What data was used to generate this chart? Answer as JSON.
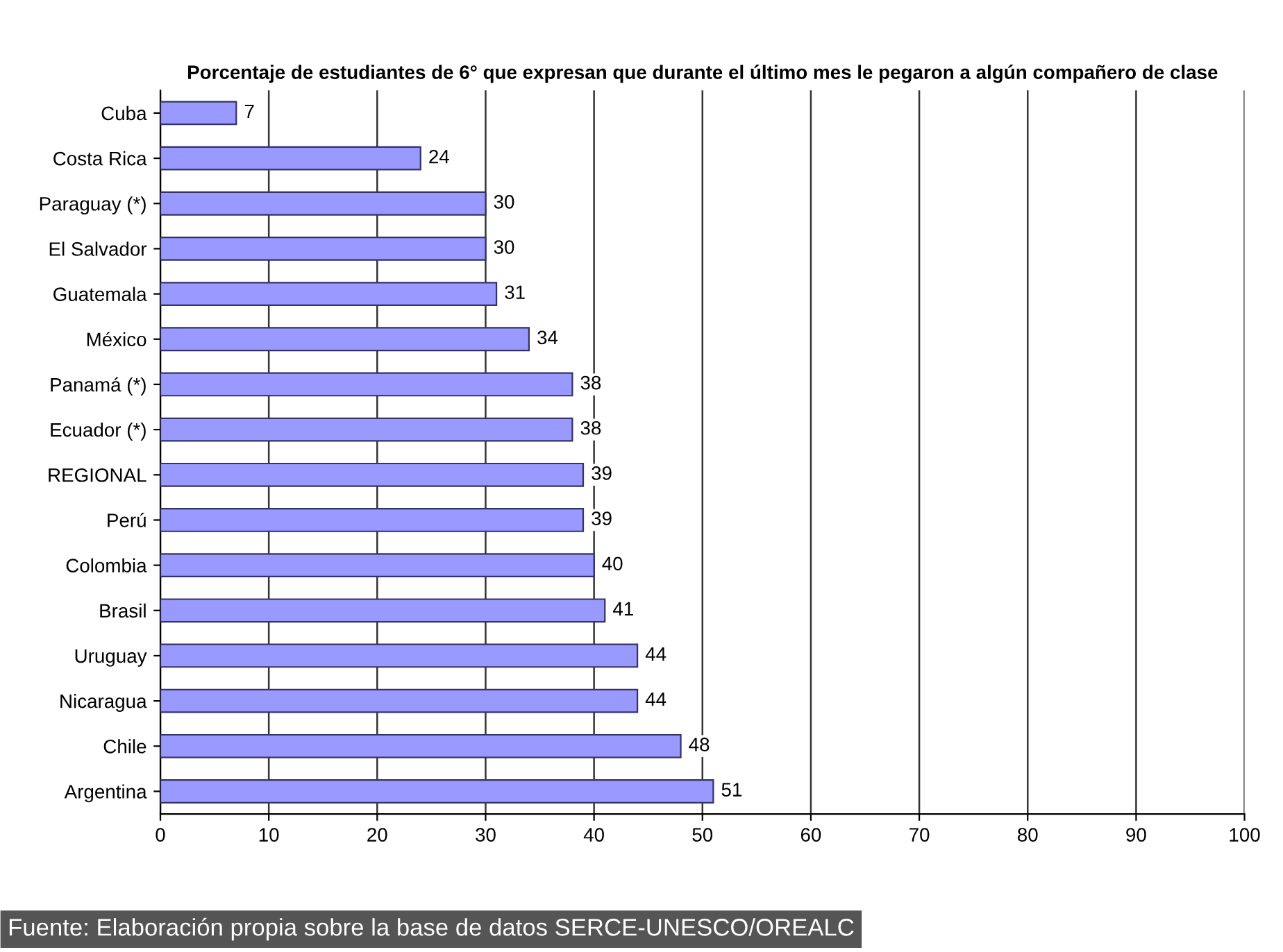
{
  "chart_data": {
    "type": "bar",
    "orientation": "horizontal",
    "title": "Porcentaje de estudiantes de 6° que expresan que durante el último mes le pegaron a algún compañero de clase",
    "categories": [
      "Cuba",
      "Costa Rica",
      "Paraguay (*)",
      "El Salvador",
      "Guatemala",
      "México",
      "Panamá (*)",
      "Ecuador (*)",
      "REGIONAL",
      "Perú",
      "Colombia",
      "Brasil",
      "Uruguay",
      "Nicaragua",
      "Chile",
      "Argentina"
    ],
    "values": [
      7,
      24,
      30,
      30,
      31,
      34,
      38,
      38,
      39,
      39,
      40,
      41,
      44,
      44,
      48,
      51
    ],
    "color": "#9999ff",
    "xlim": [
      0,
      100
    ],
    "xticks": [
      0,
      10,
      20,
      30,
      40,
      50,
      60,
      70,
      80,
      90,
      100
    ],
    "grid": "x",
    "data_labels": true,
    "legend": false,
    "annotations": [
      "Fuente: Elaboración propia sobre la base de datos SERCE-UNESCO/OREALC"
    ]
  }
}
